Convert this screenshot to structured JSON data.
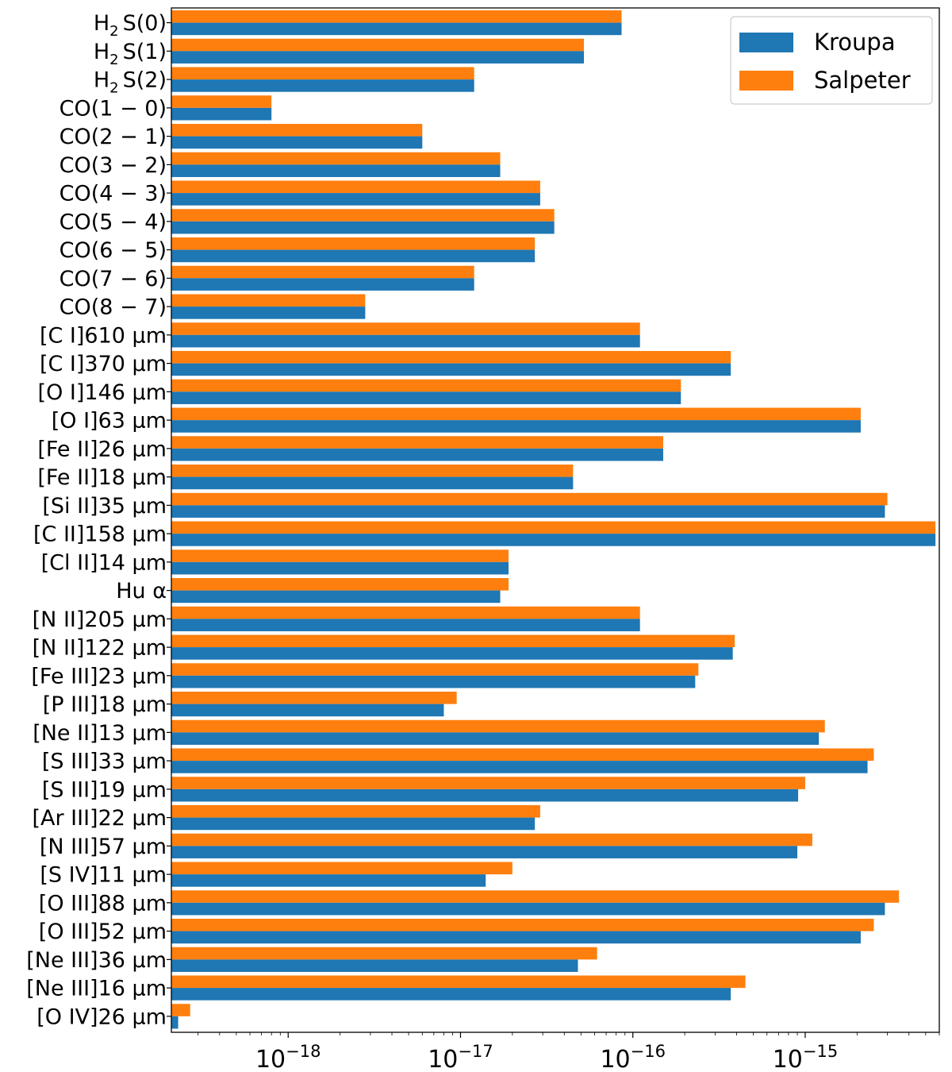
{
  "chart_data": {
    "type": "bar",
    "orientation": "horizontal",
    "x_scale": "log",
    "xlim": [
      2.1e-19,
      6e-15
    ],
    "grid": false,
    "legend_position": "top-right",
    "categories": [
      "H2 S(0)",
      "H2 S(1)",
      "H2 S(2)",
      "CO(1 − 0)",
      "CO(2 − 1)",
      "CO(3 − 2)",
      "CO(4 − 3)",
      "CO(5 − 4)",
      "CO(6 − 5)",
      "CO(7 − 6)",
      "CO(8 − 7)",
      "[C I]610 μm",
      "[C I]370 μm",
      "[O I]146 μm",
      "[O I]63 μm",
      "[Fe II]26 μm",
      "[Fe II]18 μm",
      "[Si II]35 μm",
      "[C II]158 μm",
      "[Cl II]14 μm",
      "Hu α",
      "[N II]205 μm",
      "[N II]122 μm",
      "[Fe III]23 μm",
      "[P III]18 μm",
      "[Ne II]13 μm",
      "[S III]33 μm",
      "[S III]19 μm",
      "[Ar III]22 μm",
      "[N III]57 μm",
      "[S IV]11 μm",
      "[O III]88 μm",
      "[O III]52 μm",
      "[Ne III]36 μm",
      "[Ne III]16 μm",
      "[O IV]26 μm"
    ],
    "series": [
      {
        "name": "Kroupa",
        "color": "#1f77b4",
        "values": [
          8.6e-17,
          5.2e-17,
          1.2e-17,
          8e-19,
          6e-18,
          1.7e-17,
          2.9e-17,
          3.5e-17,
          2.7e-17,
          1.2e-17,
          2.8e-18,
          1.1e-16,
          3.7e-16,
          1.9e-16,
          2.1e-15,
          1.5e-16,
          4.5e-17,
          2.9e-15,
          5.7e-15,
          1.9e-17,
          1.7e-17,
          1.1e-16,
          3.8e-16,
          2.3e-16,
          8e-18,
          1.2e-15,
          2.3e-15,
          9.1e-16,
          2.7e-17,
          9e-16,
          1.4e-17,
          2.9e-15,
          2.1e-15,
          4.8e-17,
          3.7e-16,
          2.3e-19
        ]
      },
      {
        "name": "Salpeter",
        "color": "#ff7f0e",
        "values": [
          8.6e-17,
          5.2e-17,
          1.2e-17,
          8e-19,
          6e-18,
          1.7e-17,
          2.9e-17,
          3.5e-17,
          2.7e-17,
          1.2e-17,
          2.8e-18,
          1.1e-16,
          3.7e-16,
          1.9e-16,
          2.1e-15,
          1.5e-16,
          4.5e-17,
          3e-15,
          5.7e-15,
          1.9e-17,
          1.9e-17,
          1.1e-16,
          3.9e-16,
          2.4e-16,
          9.5e-18,
          1.3e-15,
          2.5e-15,
          1e-15,
          2.9e-17,
          1.1e-15,
          2e-17,
          3.5e-15,
          2.5e-15,
          6.2e-17,
          4.5e-16,
          2.7e-19
        ]
      }
    ],
    "x_ticks": [
      {
        "value": 1e-18,
        "base": "10",
        "exponent": "−18"
      },
      {
        "value": 1e-17,
        "base": "10",
        "exponent": "−17"
      },
      {
        "value": 1e-16,
        "base": "10",
        "exponent": "−16"
      },
      {
        "value": 1e-15,
        "base": "10",
        "exponent": "−15"
      }
    ],
    "title": "",
    "xlabel": "",
    "ylabel": ""
  }
}
